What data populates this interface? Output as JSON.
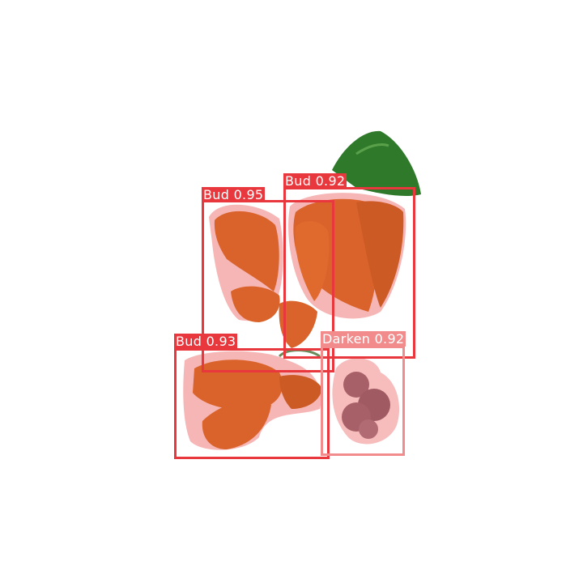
{
  "image": {
    "description_free": true
  },
  "detections": [
    {
      "label": "Bud",
      "score": "0.95",
      "color": "#e8383d"
    },
    {
      "label": "Bud",
      "score": "0.92",
      "color": "#e8383d"
    },
    {
      "label": "Bud",
      "score": "0.93",
      "color": "#e8383d"
    },
    {
      "label": "Darken",
      "score": "0.92",
      "color": "#f28b8b"
    }
  ],
  "colors": {
    "background": "#ffffff",
    "bud_fill": "#d9632a",
    "mask_overlay": "#f07a7a",
    "leaf": "#2f7a2a",
    "darken_tissue": "#a86068"
  }
}
